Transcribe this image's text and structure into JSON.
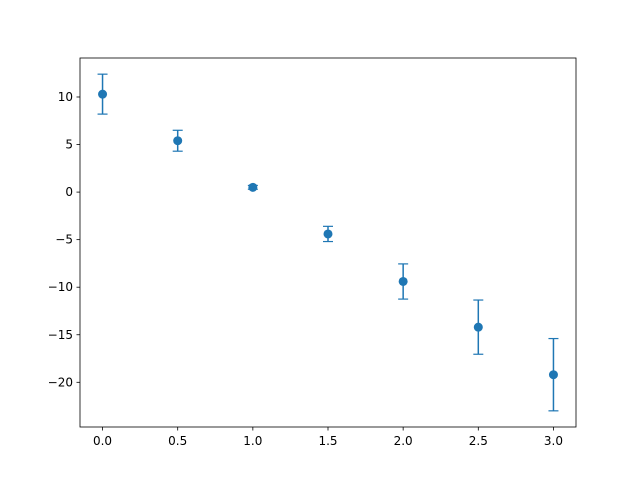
{
  "chart_data": {
    "type": "errorbar",
    "color": "#1f77b4",
    "x": [
      0,
      0.5,
      1,
      1.5,
      2,
      2.5,
      3
    ],
    "values": [
      10.3,
      5.4,
      0.5,
      -4.4,
      -9.4,
      -14.2,
      -19.2
    ],
    "errors": [
      2.1,
      1.1,
      0.2,
      0.8,
      1.85,
      2.85,
      3.8
    ],
    "xlim": [
      -0.15,
      3.15
    ],
    "xticks": [
      {
        "value": 0,
        "label": "0.0"
      },
      0.5,
      {
        "value": 1,
        "label": "1.0"
      },
      1.5,
      {
        "value": 2,
        "label": "2.0"
      },
      2.5,
      {
        "value": 3,
        "label": "3.0"
      }
    ],
    "ylim": [
      -24.7,
      14.1
    ],
    "yticks": [
      {
        "value": -20,
        "label": "−20"
      },
      {
        "value": -15,
        "label": "−15"
      },
      {
        "value": -10,
        "label": "−10"
      },
      {
        "value": -5,
        "label": "−5"
      },
      0,
      5,
      10
    ],
    "grid": false
  }
}
